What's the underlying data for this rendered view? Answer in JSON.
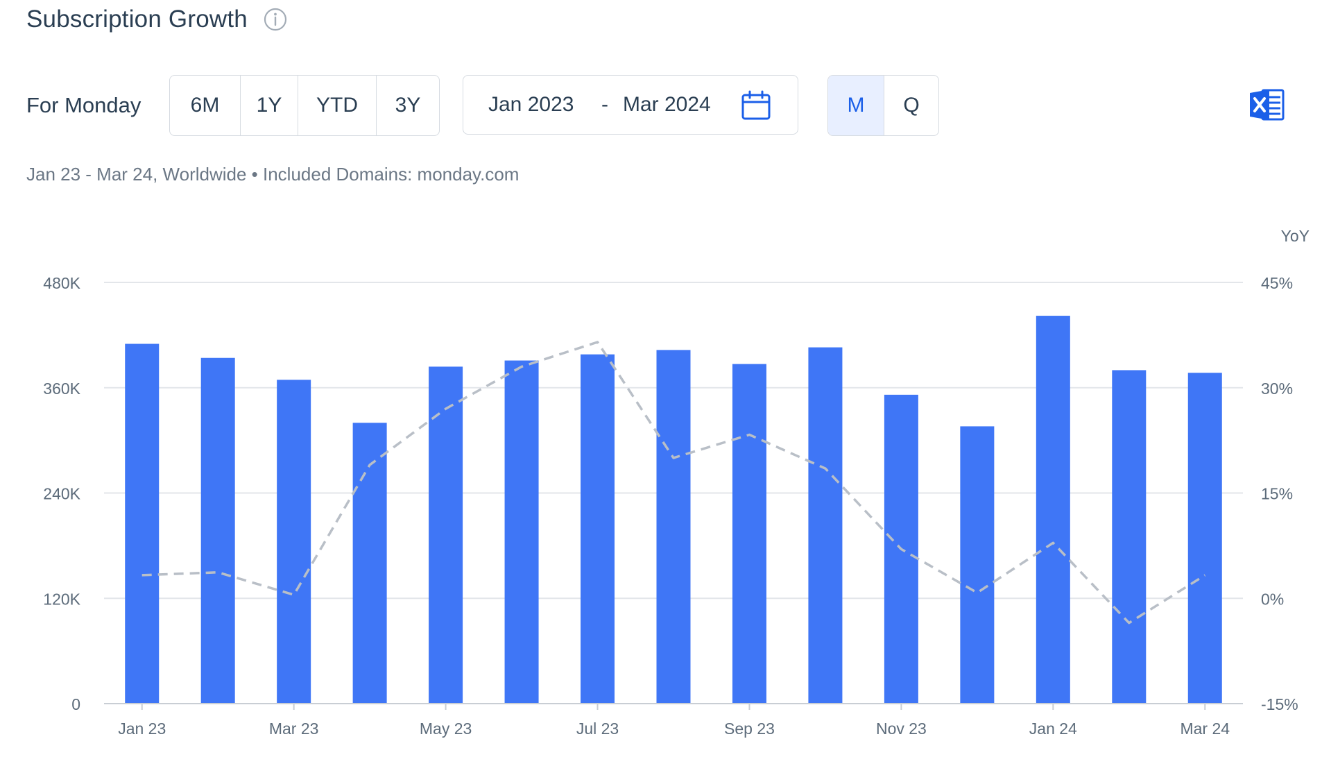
{
  "header": {
    "title": "Subscription Growth",
    "info_icon": "info-circle-icon"
  },
  "controls": {
    "for_label": "For Monday",
    "periods": [
      "6M",
      "1Y",
      "YTD",
      "3Y"
    ],
    "date_range": {
      "from": "Jan 2023",
      "separator": "-",
      "to": "Mar 2024",
      "icon": "calendar-icon"
    },
    "granularity": [
      "M",
      "Q"
    ],
    "granularity_selected": "M",
    "export_icon": "excel-icon"
  },
  "subtitle": "Jan 23 - Mar 24, Worldwide • Included Domains: monday.com",
  "colors": {
    "bar": "#3f76f6",
    "line": "#b9bfc7",
    "accent": "#1b5fe8",
    "grid": "#e3e6ea",
    "axis_text": "#5c6b7a"
  },
  "chart_data": {
    "type": "bar",
    "categories": [
      "Jan 23",
      "Feb 23",
      "Mar 23",
      "Apr 23",
      "May 23",
      "Jun 23",
      "Jul 23",
      "Aug 23",
      "Sep 23",
      "Oct 23",
      "Nov 23",
      "Dec 23",
      "Jan 24",
      "Feb 24",
      "Mar 24"
    ],
    "x_tick_labels": [
      "Jan 23",
      "Mar 23",
      "May 23",
      "Jul 23",
      "Sep 23",
      "Nov 23",
      "Jan 24",
      "Mar 24"
    ],
    "series": [
      {
        "values": [
          410000,
          394000,
          369000,
          320000,
          384000,
          391000,
          398000,
          403000,
          387000,
          406000,
          352000,
          316000,
          442000,
          380000,
          377000
        ],
        "axis": "left",
        "style": "bar"
      },
      {
        "values": [
          3.3,
          3.7,
          0.5,
          19.0,
          27.0,
          33.0,
          36.5,
          20.0,
          23.3,
          18.5,
          7.0,
          0.8,
          7.9,
          -3.5,
          3.3
        ],
        "axis": "right",
        "style": "dashed-line"
      }
    ],
    "y_left": {
      "ylim": [
        0,
        480000
      ],
      "ticks": [
        "0",
        "120K",
        "240K",
        "360K",
        "480K"
      ]
    },
    "y_right": {
      "label": "YoY",
      "ylim": [
        -15,
        45
      ],
      "ticks": [
        "-15%",
        "0%",
        "15%",
        "30%",
        "45%"
      ]
    },
    "grid": true,
    "legend": "none"
  }
}
